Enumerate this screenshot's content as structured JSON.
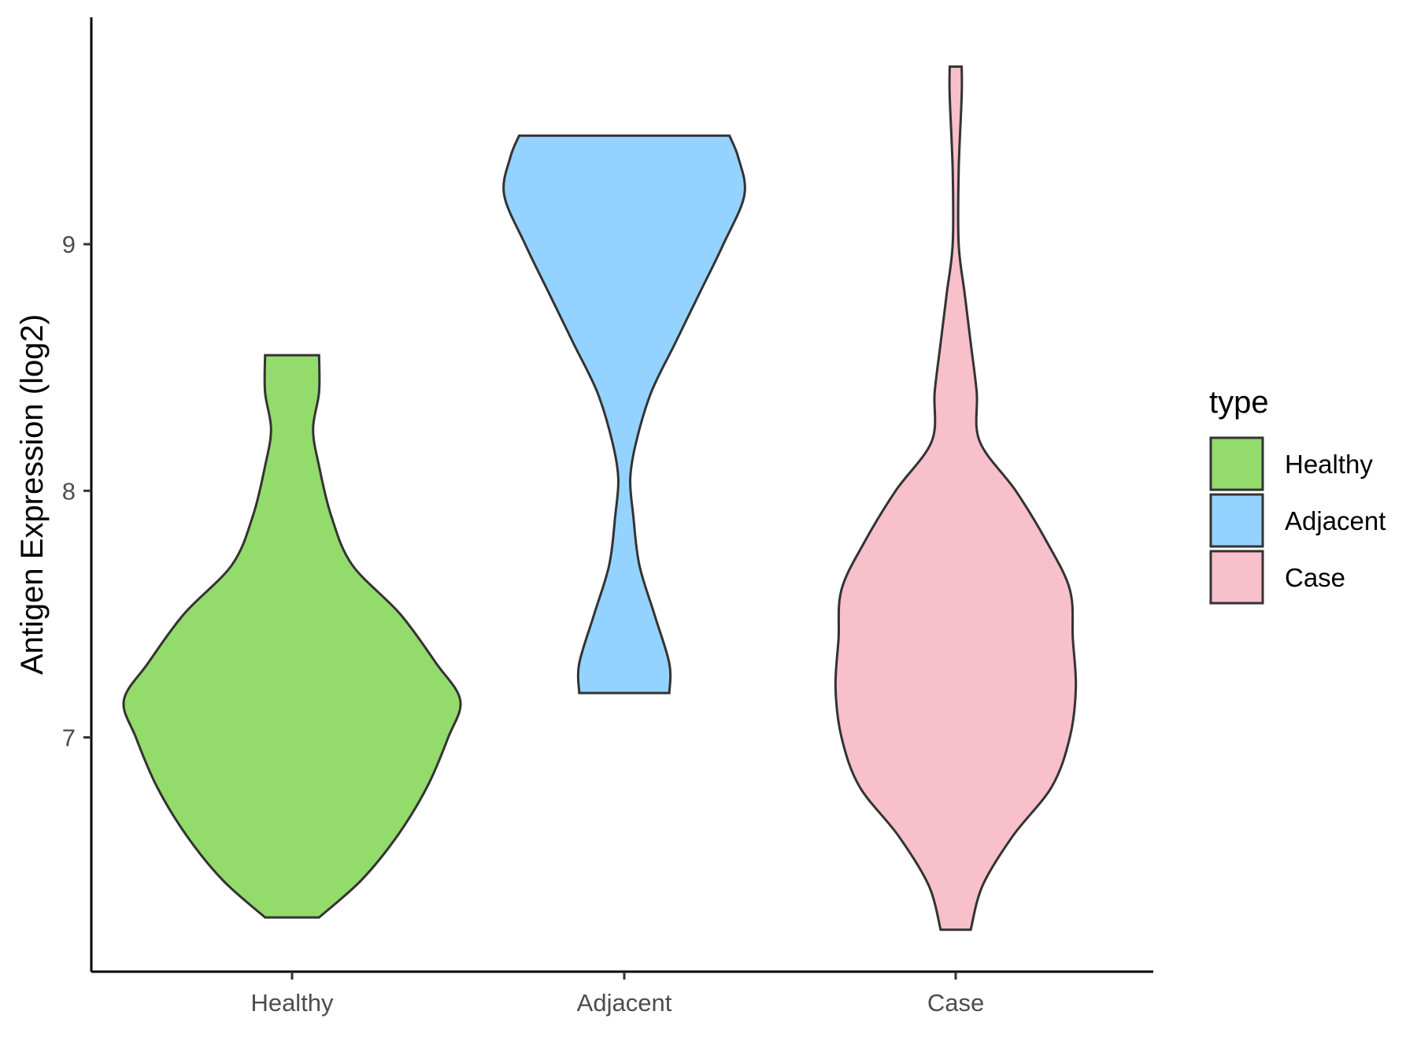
{
  "chart_data": {
    "type": "violin",
    "title": "",
    "xlabel": "",
    "ylabel": "Antigen Expression (log2)",
    "ylim": [
      6.05,
      9.92
    ],
    "yticks": [
      7,
      8,
      9
    ],
    "categories": [
      "Healthy",
      "Adjacent",
      "Case"
    ],
    "grid": false,
    "legend": {
      "title": "type",
      "position": "right",
      "entries": [
        "Healthy",
        "Adjacent",
        "Case"
      ]
    },
    "series": [
      {
        "name": "Healthy",
        "color": "#93DB6B",
        "min": 6.27,
        "max": 8.55,
        "density": [
          [
            6.27,
            0.09
          ],
          [
            6.42,
            0.23
          ],
          [
            6.6,
            0.35
          ],
          [
            6.8,
            0.45
          ],
          [
            7.0,
            0.52
          ],
          [
            7.15,
            0.56
          ],
          [
            7.3,
            0.48
          ],
          [
            7.5,
            0.36
          ],
          [
            7.7,
            0.2
          ],
          [
            7.9,
            0.13
          ],
          [
            8.1,
            0.09
          ],
          [
            8.25,
            0.07
          ],
          [
            8.4,
            0.09
          ],
          [
            8.55,
            0.09
          ]
        ]
      },
      {
        "name": "Adjacent",
        "color": "#94D3FF",
        "min": 7.18,
        "max": 9.44,
        "density": [
          [
            7.18,
            0.15
          ],
          [
            7.3,
            0.15
          ],
          [
            7.5,
            0.1
          ],
          [
            7.7,
            0.05
          ],
          [
            7.9,
            0.03
          ],
          [
            8.05,
            0.02
          ],
          [
            8.2,
            0.04
          ],
          [
            8.4,
            0.09
          ],
          [
            8.6,
            0.17
          ],
          [
            8.8,
            0.25
          ],
          [
            9.0,
            0.33
          ],
          [
            9.2,
            0.4
          ],
          [
            9.35,
            0.38
          ],
          [
            9.44,
            0.35
          ]
        ]
      },
      {
        "name": "Case",
        "color": "#F7C0CB",
        "min": 6.22,
        "max": 9.72,
        "density": [
          [
            6.22,
            0.05
          ],
          [
            6.4,
            0.09
          ],
          [
            6.6,
            0.19
          ],
          [
            6.8,
            0.32
          ],
          [
            7.0,
            0.38
          ],
          [
            7.2,
            0.4
          ],
          [
            7.4,
            0.39
          ],
          [
            7.6,
            0.38
          ],
          [
            7.8,
            0.3
          ],
          [
            8.0,
            0.2
          ],
          [
            8.2,
            0.08
          ],
          [
            8.4,
            0.07
          ],
          [
            8.6,
            0.05
          ],
          [
            8.8,
            0.03
          ],
          [
            9.0,
            0.01
          ],
          [
            9.3,
            0.01
          ],
          [
            9.6,
            0.02
          ],
          [
            9.72,
            0.02
          ]
        ]
      }
    ]
  }
}
